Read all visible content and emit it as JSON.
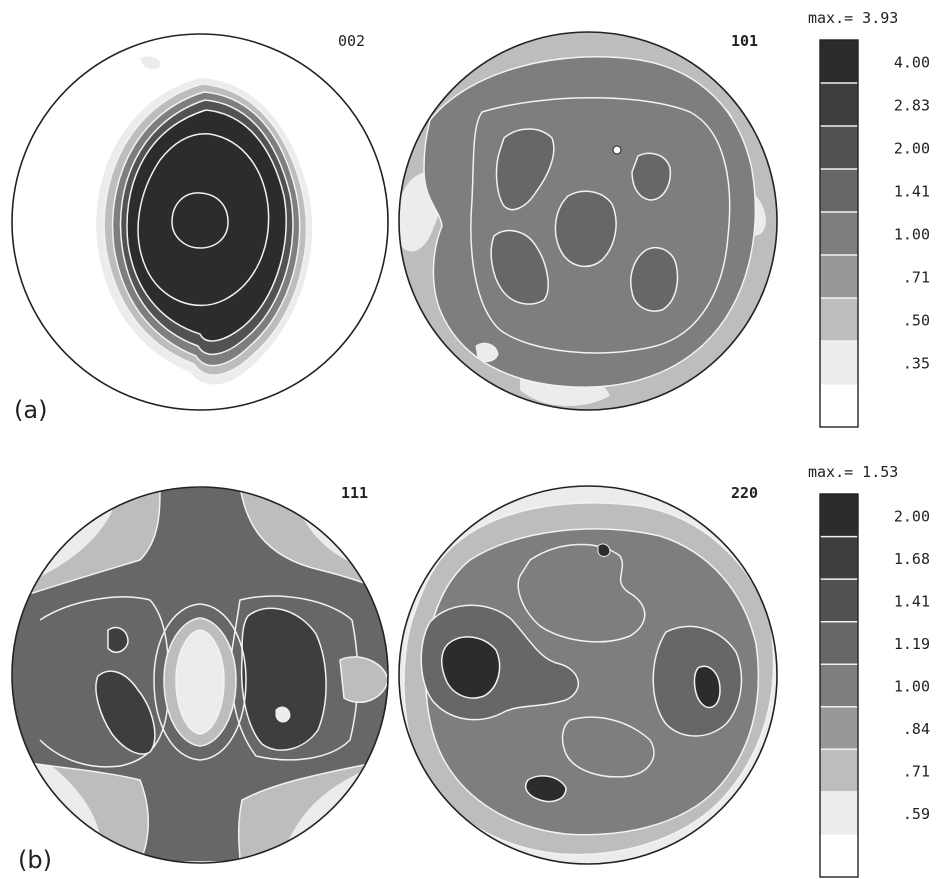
{
  "panels": [
    {
      "id": "a",
      "label": "(a)",
      "max_label": "max.= 3.93",
      "figures": [
        {
          "title": "002"
        },
        {
          "title": "101"
        }
      ],
      "legend_levels": [
        "4.00",
        "2.83",
        "2.00",
        "1.41",
        "1.00",
        ".71",
        ".50",
        ".35"
      ]
    },
    {
      "id": "b",
      "label": "(b)",
      "max_label": "max.= 1.53",
      "figures": [
        {
          "title": "111"
        },
        {
          "title": "220"
        }
      ],
      "legend_levels": [
        "2.00",
        "1.68",
        "1.41",
        "1.19",
        "1.00",
        ".84",
        ".71",
        ".59"
      ]
    }
  ],
  "colors": {
    "shades": [
      "#2c2c2c",
      "#3e3e3e",
      "#525252",
      "#676767",
      "#7e7e7e",
      "#989898",
      "#bdbdbd",
      "#ececec",
      "#ffffff"
    ],
    "contour": "#f2f2f2",
    "outline": "#222222"
  }
}
